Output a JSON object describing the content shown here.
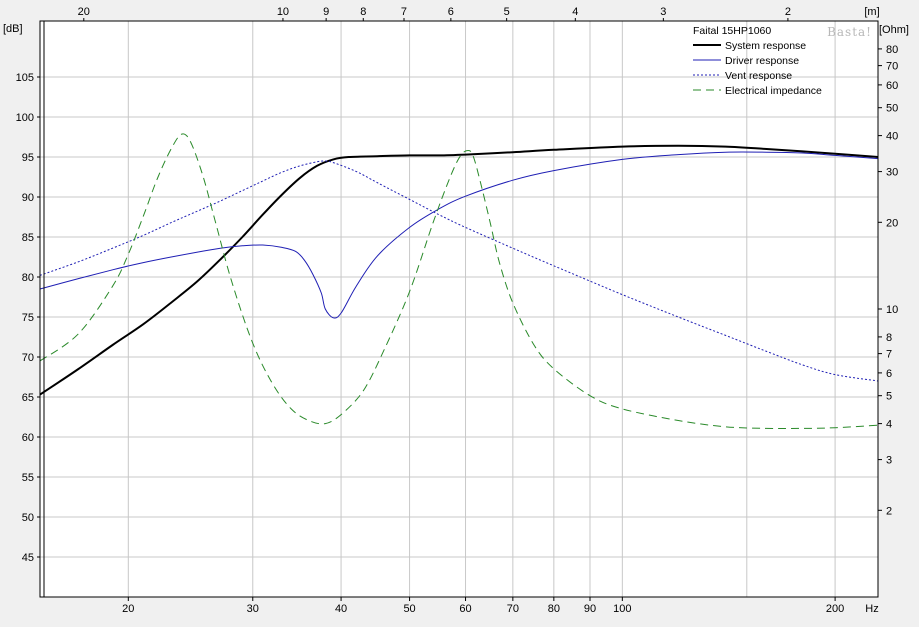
{
  "chart_data": {
    "type": "line",
    "title": "Faital 15HP1060",
    "watermark": "Basta!",
    "x_axis": {
      "unit": "Hz",
      "scale": "log",
      "range": [
        15,
        230
      ],
      "ticks": [
        {
          "value": 20,
          "label": "20"
        },
        {
          "value": 30,
          "label": "30"
        },
        {
          "value": 40,
          "label": "40"
        },
        {
          "value": 50,
          "label": "50"
        },
        {
          "value": 60,
          "label": "60"
        },
        {
          "value": 70,
          "label": "70"
        },
        {
          "value": 80,
          "label": "80"
        },
        {
          "value": 90,
          "label": "90"
        },
        {
          "value": 100,
          "label": "100"
        },
        {
          "value": 200,
          "label": "200"
        }
      ],
      "minor_ticks": [
        150
      ]
    },
    "top_axis": {
      "unit": "[m]",
      "ticks": [
        {
          "freq": 17.3,
          "label": "20"
        },
        {
          "freq": 33.1,
          "label": "10"
        },
        {
          "freq": 38.1,
          "label": "9"
        },
        {
          "freq": 43.0,
          "label": "8"
        },
        {
          "freq": 49.1,
          "label": "7"
        },
        {
          "freq": 57.2,
          "label": "6"
        },
        {
          "freq": 68.6,
          "label": "5"
        },
        {
          "freq": 85.8,
          "label": "4"
        },
        {
          "freq": 114.3,
          "label": "3"
        },
        {
          "freq": 171.5,
          "label": "2"
        }
      ]
    },
    "y_axis": {
      "unit": "[dB]",
      "range": [
        40,
        112
      ],
      "ticks": [
        45,
        50,
        55,
        60,
        65,
        70,
        75,
        80,
        85,
        90,
        95,
        100,
        105
      ]
    },
    "y2_axis": {
      "unit": "[Ohm]",
      "scale": "log",
      "range": [
        1,
        100
      ],
      "ticks": [
        2,
        3,
        4,
        5,
        6,
        7,
        8,
        10,
        20,
        30,
        40,
        50,
        60,
        70,
        80
      ]
    },
    "grid": true,
    "legend": {
      "position": "top-right",
      "entries": [
        {
          "label": "System response",
          "color": "#000000",
          "style": "solid"
        },
        {
          "label": "Driver response",
          "color": "#1f1fb4",
          "style": "solid"
        },
        {
          "label": "Vent response",
          "color": "#1f1fb4",
          "style": "dotted"
        },
        {
          "label": "Electrical impedance",
          "color": "#2a8a2a",
          "style": "dashed"
        }
      ]
    },
    "series": [
      {
        "name": "System response",
        "axis": "y",
        "color": "#000000",
        "style": "solid",
        "x": [
          15,
          17,
          19,
          21,
          23,
          25,
          27,
          29,
          31,
          33,
          35,
          37,
          39,
          41,
          45,
          50,
          55,
          60,
          70,
          80,
          100,
          120,
          140,
          160,
          180,
          200,
          230
        ],
        "y": [
          65.3,
          68.5,
          71.5,
          74.1,
          76.8,
          79.4,
          82.2,
          85.0,
          87.8,
          90.3,
          92.4,
          93.9,
          94.7,
          95.0,
          95.1,
          95.2,
          95.2,
          95.3,
          95.6,
          95.9,
          96.3,
          96.4,
          96.3,
          96.0,
          95.7,
          95.4,
          95.0
        ]
      },
      {
        "name": "Driver response",
        "axis": "y",
        "color": "#1f1fb4",
        "style": "solid",
        "x": [
          15,
          17,
          19,
          21,
          23,
          25,
          27,
          29,
          31,
          33,
          34.5,
          35.5,
          36.5,
          37.5,
          38,
          39,
          40,
          42,
          45,
          50,
          55,
          60,
          70,
          80,
          100,
          120,
          140,
          160,
          180,
          200,
          230
        ],
        "y": [
          78.5,
          79.8,
          80.9,
          81.8,
          82.5,
          83.1,
          83.6,
          83.9,
          84.0,
          83.7,
          83.2,
          82.1,
          80.3,
          78.0,
          76.0,
          74.9,
          75.5,
          78.8,
          82.6,
          86.2,
          88.5,
          90.1,
          92.1,
          93.3,
          94.7,
          95.3,
          95.6,
          95.6,
          95.5,
          95.2,
          94.8
        ]
      },
      {
        "name": "Vent response",
        "axis": "y",
        "color": "#1f1fb4",
        "style": "dotted",
        "x": [
          15,
          17,
          19,
          21,
          23,
          25,
          27,
          29,
          31,
          33,
          35,
          37,
          38,
          39,
          42,
          45,
          50,
          55,
          60,
          70,
          80,
          100,
          120,
          140,
          160,
          180,
          200,
          230
        ],
        "y": [
          80.2,
          81.9,
          83.6,
          85.2,
          86.8,
          88.2,
          89.5,
          90.8,
          92.0,
          93.1,
          93.9,
          94.4,
          94.5,
          94.3,
          93.2,
          91.8,
          89.7,
          87.8,
          86.2,
          83.6,
          81.4,
          77.8,
          75.0,
          72.7,
          70.7,
          69.0,
          67.8,
          67.0
        ]
      },
      {
        "name": "Electrical impedance",
        "axis": "y2",
        "color": "#2a8a2a",
        "style": "dashed",
        "x": [
          15,
          17,
          19,
          20,
          21,
          22,
          23,
          23.8,
          24.5,
          25.5,
          26.5,
          28,
          30,
          32,
          34,
          36,
          38,
          40,
          43,
          46,
          50,
          54,
          57,
          59,
          60.5,
          61.5,
          63,
          65,
          67,
          70,
          75,
          80,
          90,
          100,
          120,
          140,
          160,
          180,
          200,
          230
        ],
        "y": [
          6.6,
          8.2,
          12.0,
          15.5,
          21.0,
          28.5,
          36.0,
          40.5,
          38.0,
          29.0,
          20.5,
          12.5,
          7.6,
          5.5,
          4.5,
          4.1,
          4.0,
          4.3,
          5.2,
          7.2,
          11.5,
          20.0,
          28.5,
          34.0,
          35.5,
          34.0,
          27.5,
          20.0,
          14.5,
          10.5,
          7.5,
          6.2,
          5.0,
          4.5,
          4.1,
          3.9,
          3.85,
          3.85,
          3.87,
          3.95
        ]
      }
    ]
  }
}
